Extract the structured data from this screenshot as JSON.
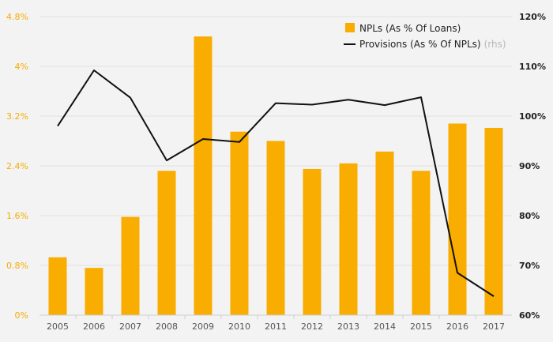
{
  "chart_data": {
    "type": "bar",
    "categories": [
      "2005",
      "2006",
      "2007",
      "2008",
      "2009",
      "2010",
      "2011",
      "2012",
      "2013",
      "2014",
      "2015",
      "2016",
      "2017"
    ],
    "series": [
      {
        "name": "NPLs (As % Of Loans)",
        "type": "bar",
        "axis": "left",
        "color": "#f8ad00",
        "values": [
          0.93,
          0.76,
          1.58,
          2.32,
          4.48,
          2.95,
          2.8,
          2.35,
          2.44,
          2.63,
          2.32,
          3.08,
          3.01
        ]
      },
      {
        "name": "Provisions (As % Of NPLs)",
        "name_suffix": "(rhs)",
        "type": "line",
        "axis": "right",
        "color": "#111111",
        "values": [
          98.0,
          109.2,
          103.7,
          91.1,
          95.4,
          94.8,
          102.6,
          102.3,
          103.3,
          102.2,
          103.8,
          68.5,
          63.8
        ]
      }
    ],
    "left_axis": {
      "min": 0,
      "max": 4.8,
      "ticks": [
        0,
        0.8,
        1.6,
        2.4,
        3.2,
        4.0,
        4.8
      ],
      "tick_labels": [
        "0%",
        "0.8%",
        "1.6%",
        "2.4%",
        "3.2%",
        "4%",
        "4.8%"
      ],
      "color": "#f6ac00"
    },
    "right_axis": {
      "min": 60,
      "max": 120,
      "ticks": [
        60,
        70,
        80,
        90,
        100,
        110,
        120
      ],
      "tick_labels": [
        "60%",
        "70%",
        "80%",
        "90%",
        "100%",
        "110%",
        "120%"
      ],
      "color": "#222222"
    },
    "legend_position": "top-right",
    "grid": true,
    "title": "",
    "xlabel": "",
    "ylabel": ""
  }
}
